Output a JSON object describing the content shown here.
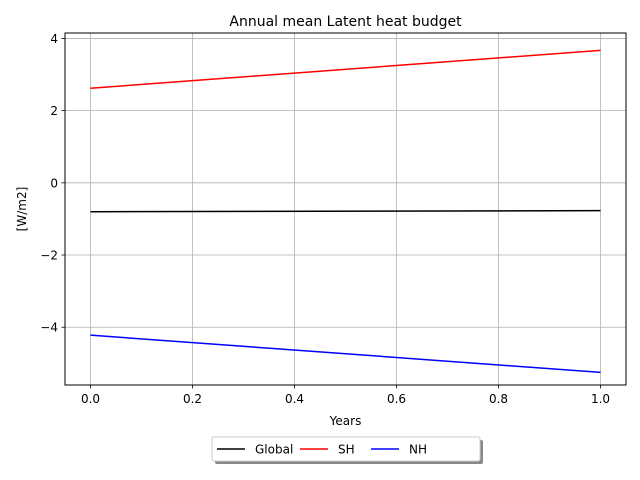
{
  "chart_data": {
    "type": "line",
    "title": "Annual mean Latent heat budget",
    "xlabel": "Years",
    "ylabel": "[W/m2]",
    "xlim": [
      -0.05,
      1.05
    ],
    "ylim": [
      -5.6,
      4.15
    ],
    "xticks": [
      0.0,
      0.2,
      0.4,
      0.6,
      0.8,
      1.0
    ],
    "xtick_labels": [
      "0.0",
      "0.2",
      "0.4",
      "0.6",
      "0.8",
      "1.0"
    ],
    "yticks": [
      -4,
      -2,
      0,
      2,
      4
    ],
    "ytick_labels": [
      "−4",
      "−2",
      "0",
      "2",
      "4"
    ],
    "grid": true,
    "legend_position": "bottom-center-outside",
    "series": [
      {
        "name": "Global",
        "color": "#000000",
        "x": [
          0.0,
          1.0
        ],
        "y": [
          -0.8,
          -0.77
        ]
      },
      {
        "name": "SH",
        "color": "#ff0000",
        "x": [
          0.0,
          1.0
        ],
        "y": [
          2.62,
          3.67
        ]
      },
      {
        "name": "NH",
        "color": "#0000ff",
        "x": [
          0.0,
          1.0
        ],
        "y": [
          -4.22,
          -5.25
        ]
      }
    ]
  }
}
